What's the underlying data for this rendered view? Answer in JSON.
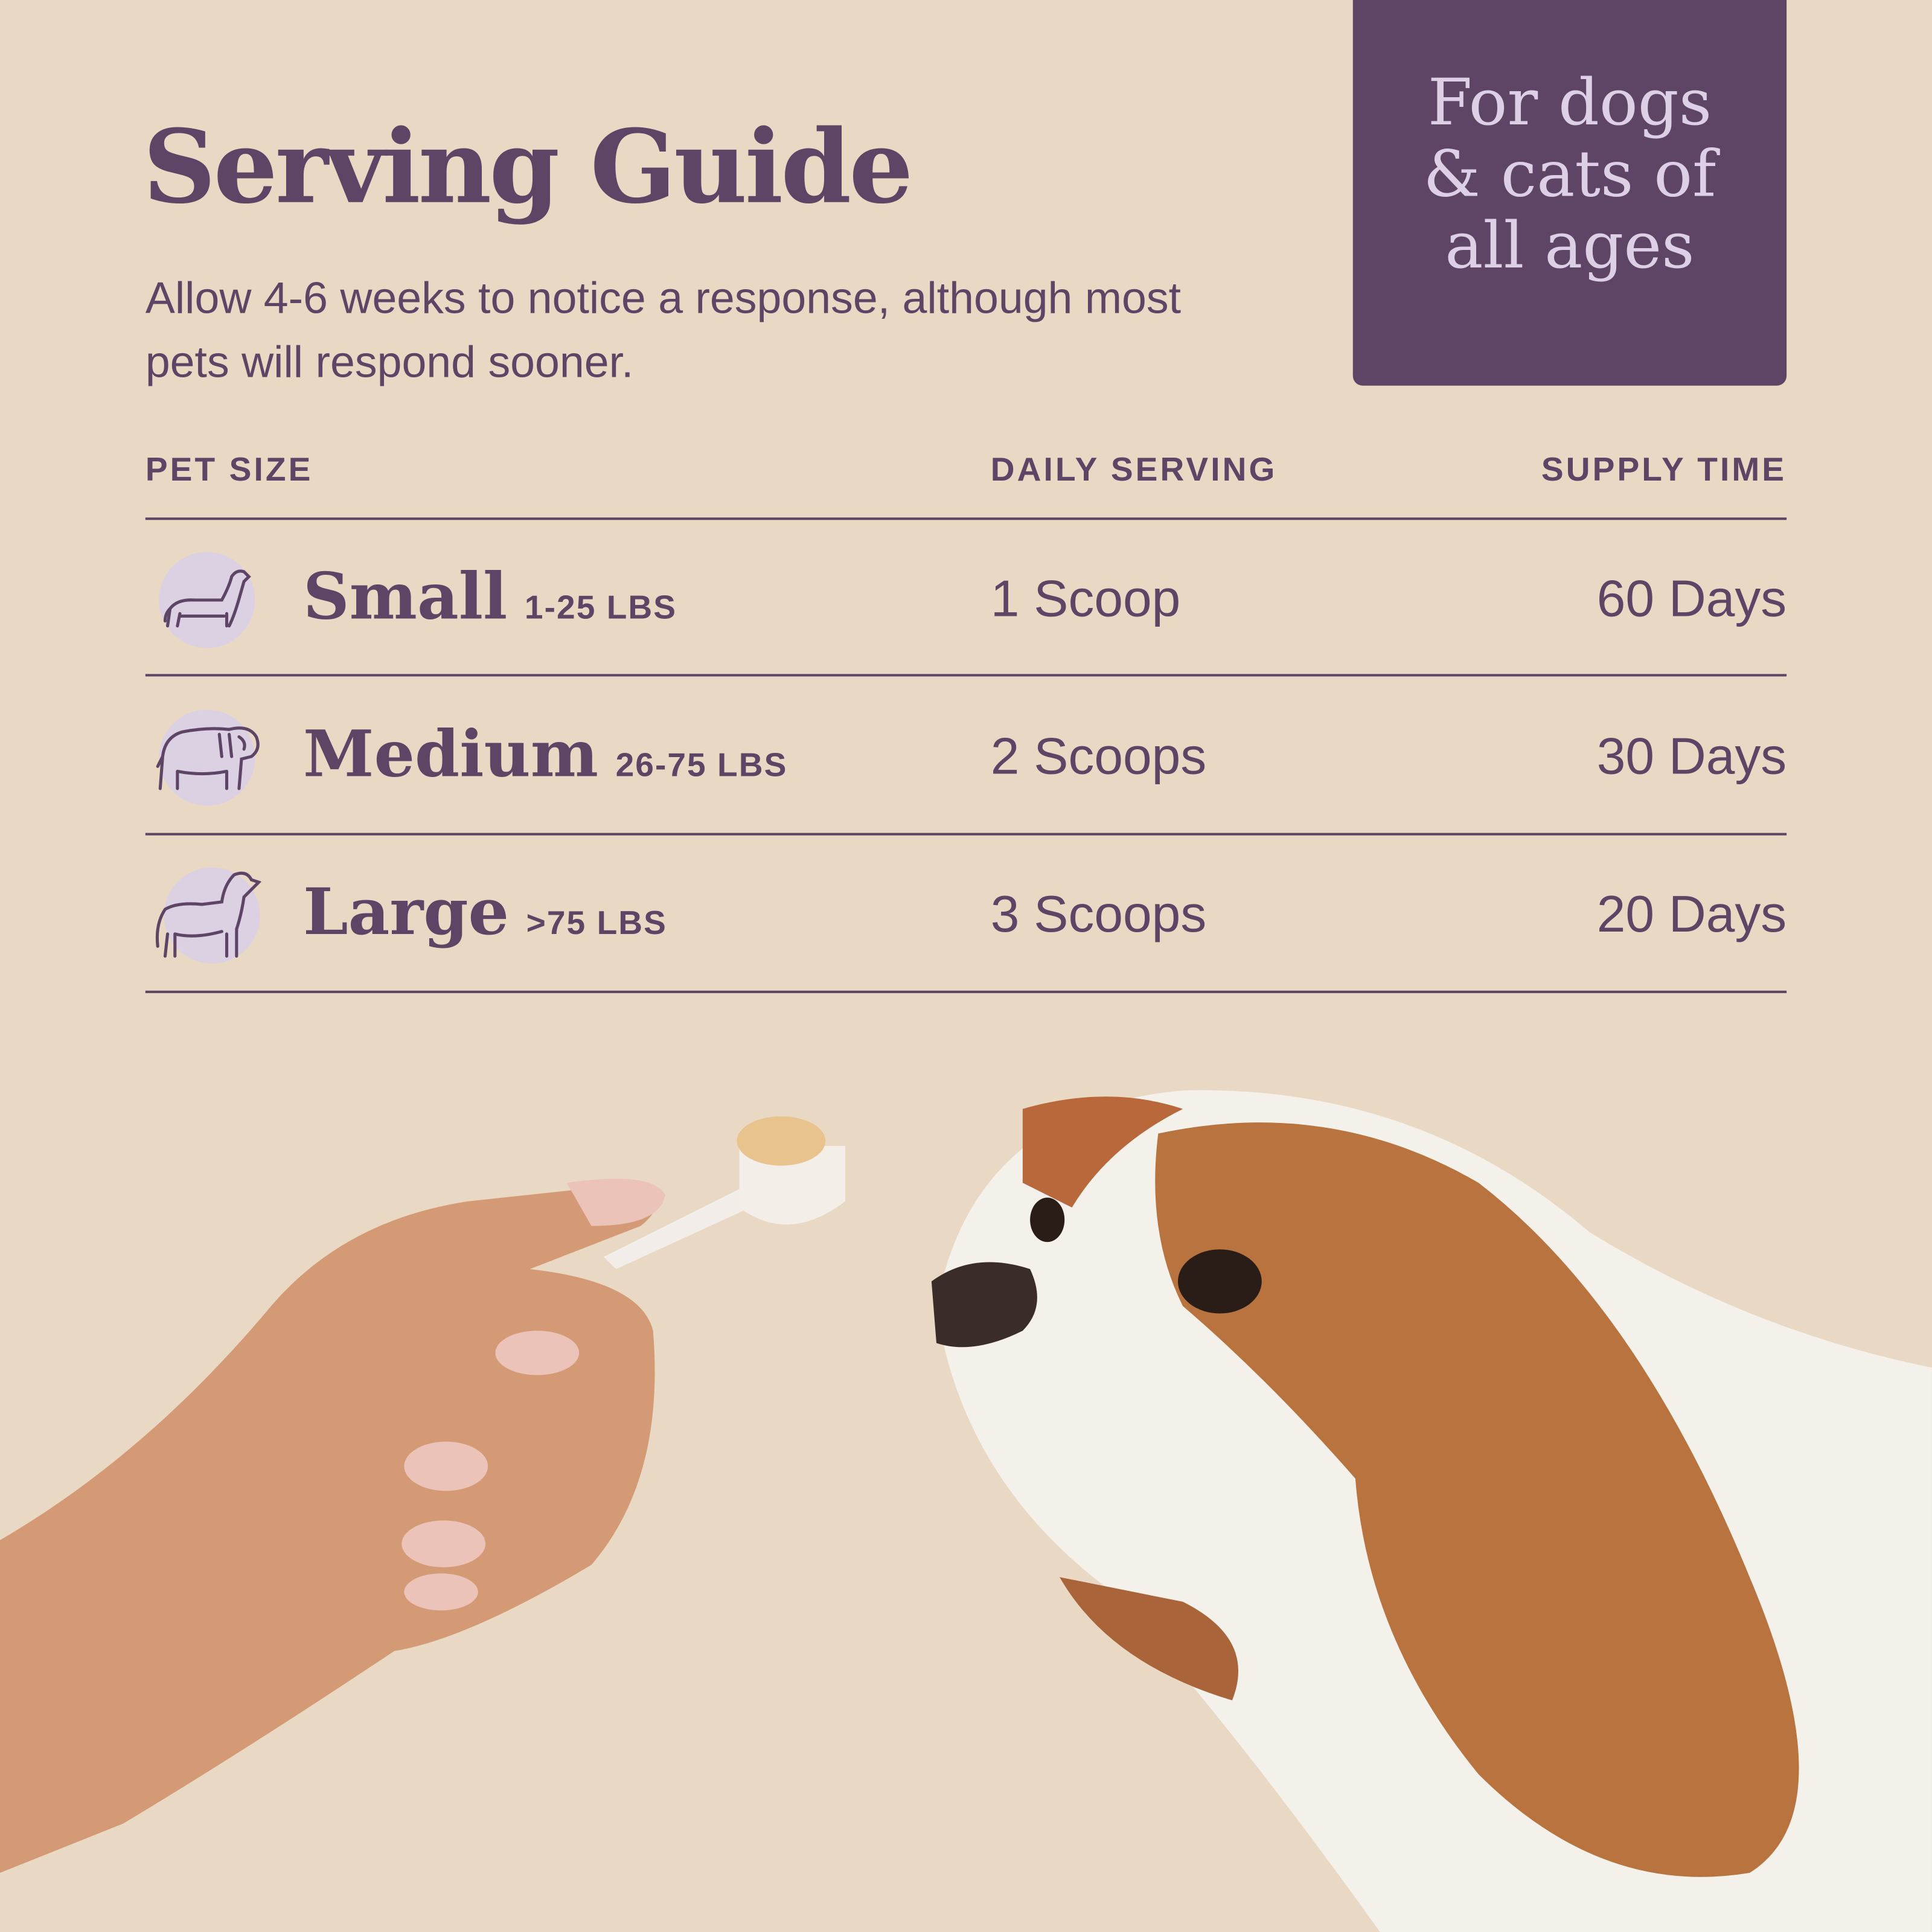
{
  "header": {
    "title": "Serving Guide",
    "subtitle": "Allow 4-6 weeks to notice a response, although most pets will respond sooner."
  },
  "badge": {
    "text": "For dogs & cats of all ages"
  },
  "table": {
    "columns": [
      "PET SIZE",
      "DAILY SERVING",
      "SUPPLY TIME"
    ],
    "rows": [
      {
        "size": "Small",
        "weight": "1-25 LBS",
        "serving": "1 Scoop",
        "supply": "60 Days",
        "icon": "small-dog-icon"
      },
      {
        "size": "Medium",
        "weight": "26-75 LBS",
        "serving": "2 Scoops",
        "supply": "30 Days",
        "icon": "bulldog-icon"
      },
      {
        "size": "Large",
        "weight": ">75 LBS",
        "serving": "3 Scoops",
        "supply": "20 Days",
        "icon": "large-dog-icon"
      }
    ]
  },
  "colors": {
    "background": "#E9D9C4",
    "primary": "#5E4566",
    "badge_text": "#DCCFE6",
    "icon_circle": "#DCD0E3"
  }
}
